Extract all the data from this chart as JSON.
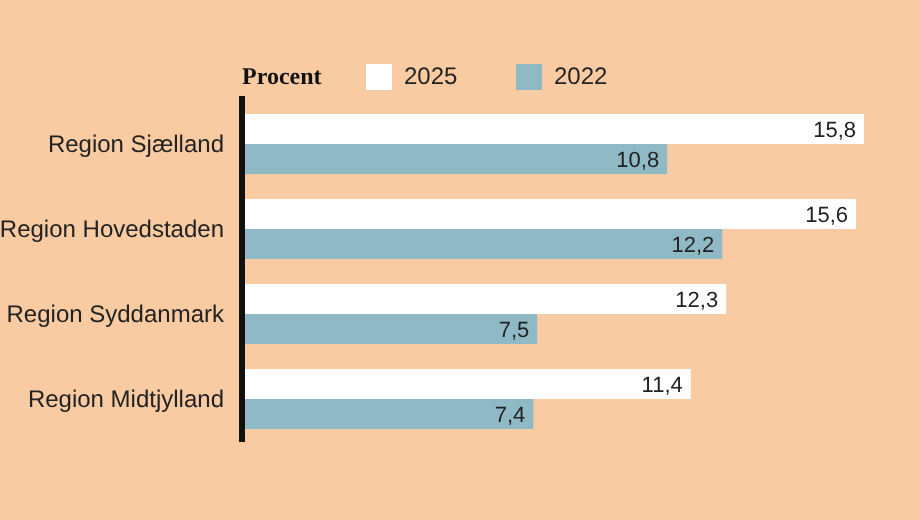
{
  "chart_data": {
    "type": "bar",
    "orientation": "horizontal",
    "legend_title": "Procent",
    "legend": "top",
    "categories": [
      "Region Sjælland",
      "Region Hovedstaden",
      "Region Syddanmark",
      "Region Midtjylland"
    ],
    "series": [
      {
        "name": "2025",
        "color": "#ffffff",
        "values": [
          15.8,
          15.6,
          12.3,
          11.4
        ],
        "value_labels": [
          "15,8",
          "15,6",
          "12,3",
          "11,4"
        ]
      },
      {
        "name": "2022",
        "color": "#8fb9c5",
        "values": [
          10.8,
          12.2,
          7.5,
          7.4
        ],
        "value_labels": [
          "10,8",
          "12,2",
          "7,5",
          "7,4"
        ]
      }
    ]
  }
}
